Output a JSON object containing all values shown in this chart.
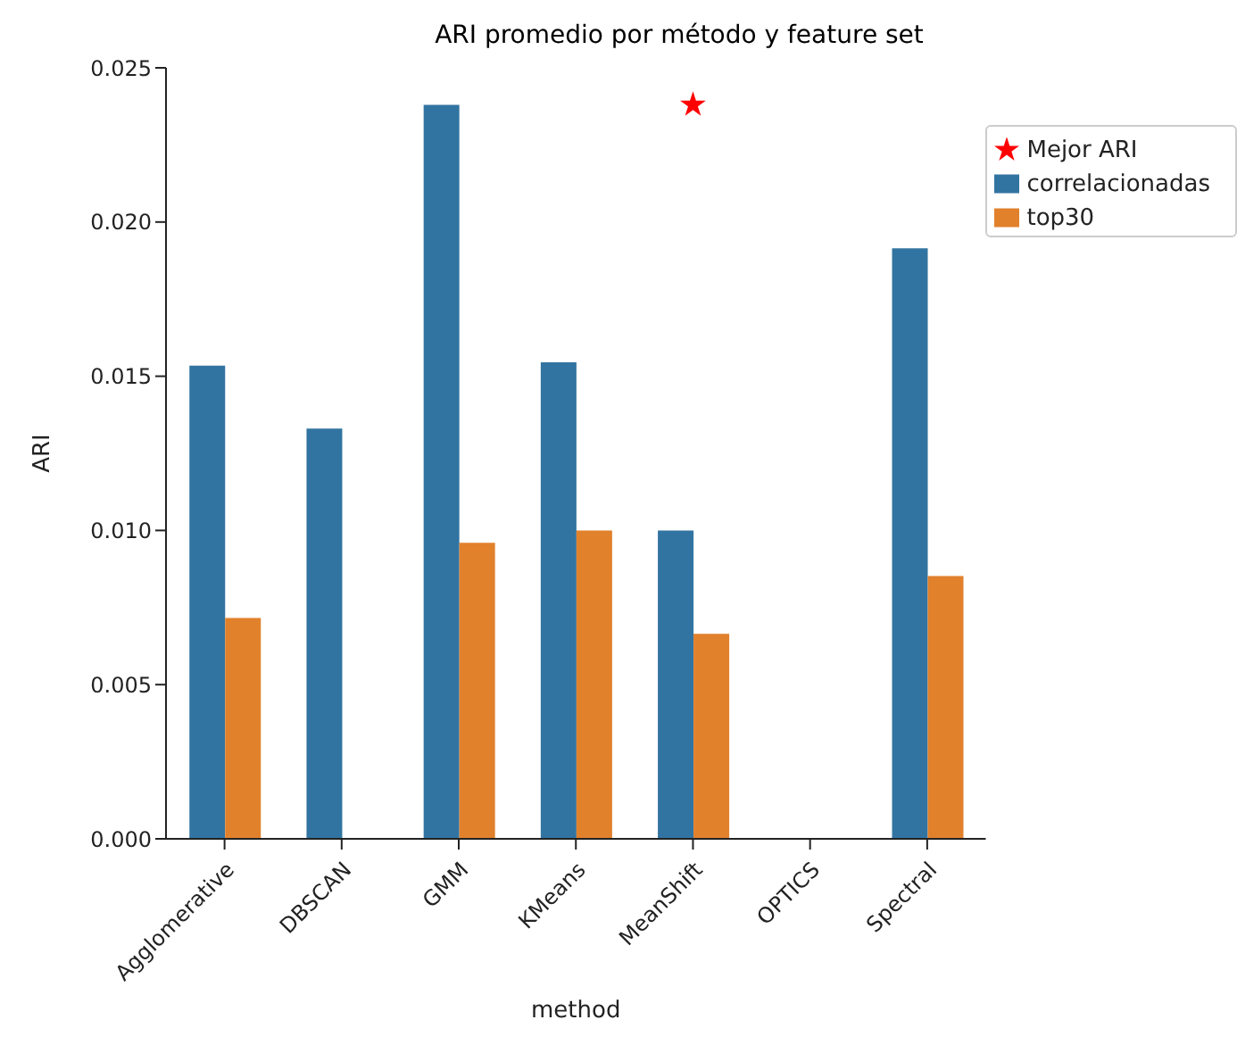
{
  "chart_data": {
    "type": "bar",
    "title": "ARI promedio por método y feature set",
    "xlabel": "method",
    "ylabel": "ARI",
    "categories": [
      "Agglomerative",
      "DBSCAN",
      "GMM",
      "KMeans",
      "MeanShift",
      "OPTICS",
      "Spectral"
    ],
    "series": [
      {
        "name": "correlacionadas",
        "color": "#3274a1",
        "values": [
          0.01534,
          0.0133,
          0.0238,
          0.01545,
          0.01,
          null,
          0.01915
        ]
      },
      {
        "name": "top30",
        "color": "#e1812c",
        "values": [
          0.00716,
          null,
          0.0096,
          0.01,
          0.00665,
          null,
          0.00852
        ]
      },
      {
        "name": "Mejor ARI",
        "type": "scatter",
        "color": "#ff0000",
        "marker": "star",
        "x": [
          "MeanShift"
        ],
        "values": [
          0.0238
        ]
      }
    ],
    "ylim": [
      0,
      0.025
    ],
    "yticks": [
      {
        "value": 0,
        "label": "0.000"
      },
      {
        "value": 0.005,
        "label": "0.005"
      },
      {
        "value": 0.01,
        "label": "0.010"
      },
      {
        "value": 0.015,
        "label": "0.015"
      },
      {
        "value": 0.02,
        "label": "0.020"
      },
      {
        "value": 0.025,
        "label": "0.025"
      }
    ],
    "grid": false,
    "legend": "top right"
  }
}
